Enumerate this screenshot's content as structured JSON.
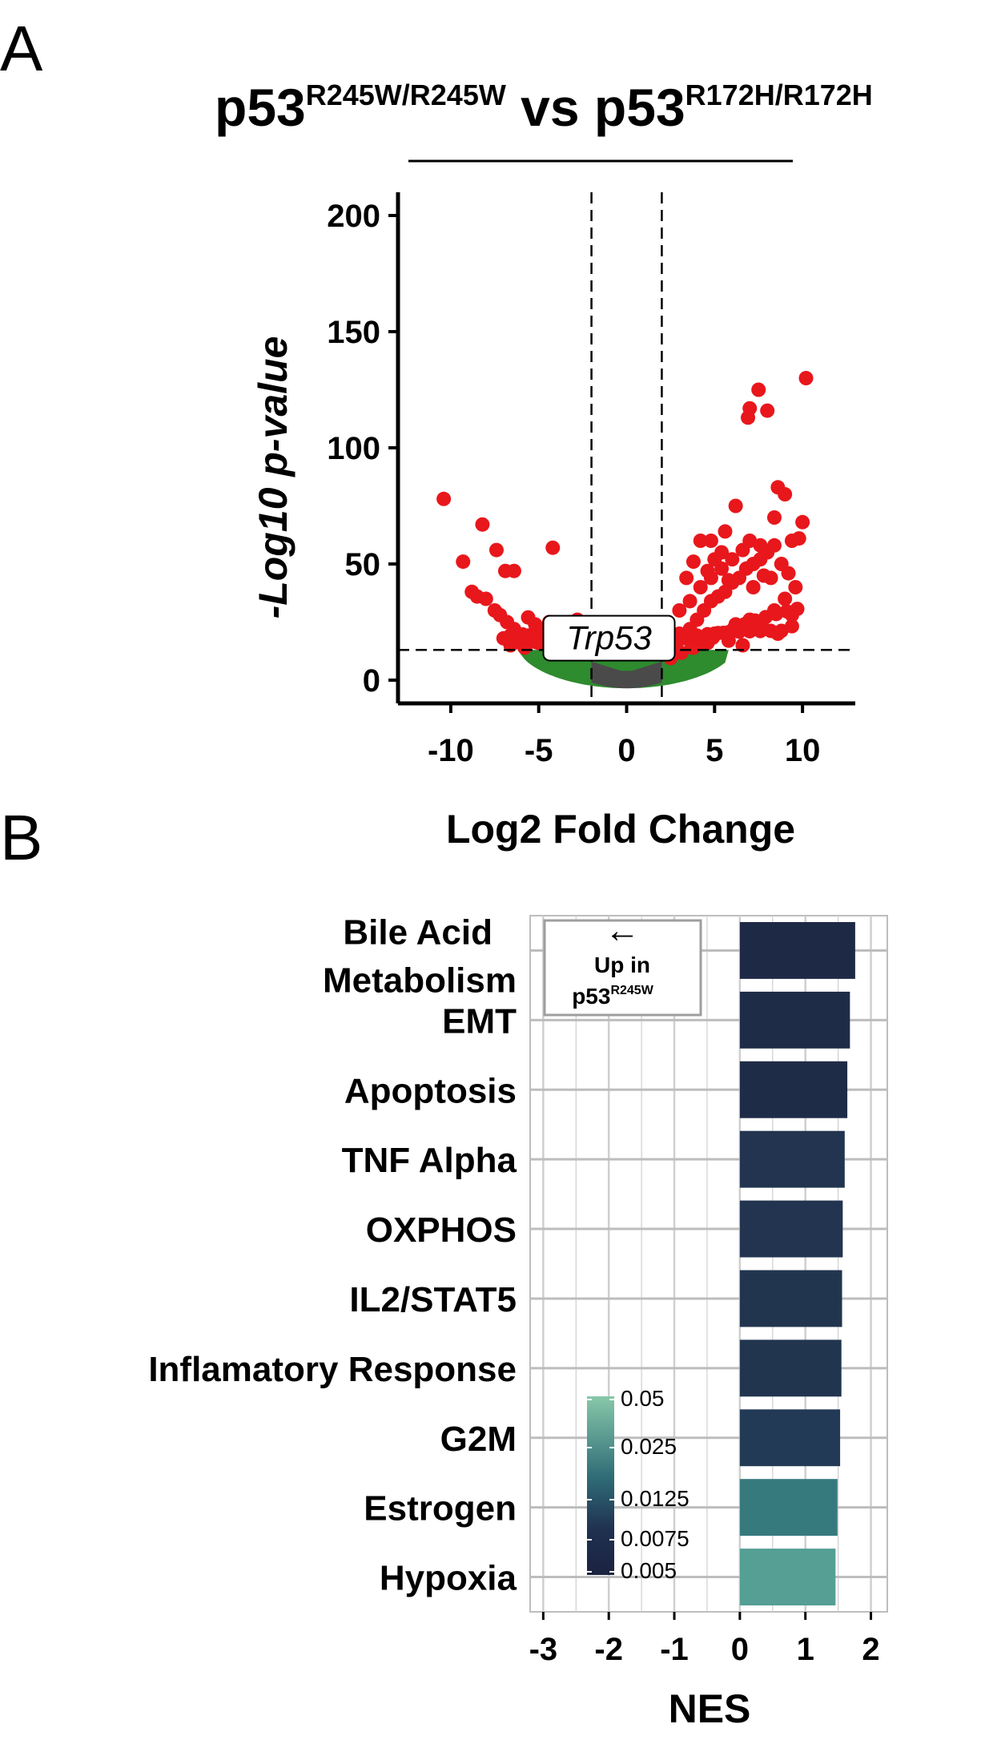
{
  "panels": {
    "a": "A",
    "b": "B"
  },
  "chart_data": [
    {
      "type": "scatter",
      "title_main": "p53",
      "title_sup1": "R245W/R245W",
      "title_vs": " vs ",
      "title_main2": "p53",
      "title_sup2": "R172H/R172H",
      "xlabel": "Log2 Fold Change",
      "ylabel": "-Log10 p-value",
      "xlim": [
        -13,
        13
      ],
      "ylim": [
        -10,
        210
      ],
      "xticks": [
        -10,
        -5,
        0,
        5,
        10
      ],
      "xtick_labels": [
        "-10",
        "-5",
        "0",
        "5",
        "10"
      ],
      "yticks": [
        0,
        50,
        100,
        150,
        200
      ],
      "ytick_labels": [
        "0",
        "50",
        "100",
        "150",
        "200"
      ],
      "thresholds": {
        "log2fc": [
          -2,
          2
        ],
        "neg_log10_p": 13
      },
      "annotation": {
        "label": "Trp53",
        "x": -1,
        "y": 16
      },
      "colors": {
        "significant": "#e8171c",
        "fc_only": "#2e8b2e",
        "not_significant": "#4a4a4a"
      },
      "significant_points": [
        [
          -10.4,
          78
        ],
        [
          -9.3,
          51
        ],
        [
          -8.2,
          67
        ],
        [
          -7.4,
          56
        ],
        [
          -6.9,
          47
        ],
        [
          -6.4,
          47
        ],
        [
          -4.2,
          57
        ],
        [
          -8.5,
          36
        ],
        [
          -8,
          35
        ],
        [
          -7.5,
          30
        ],
        [
          -7.2,
          28
        ],
        [
          -6.8,
          25
        ],
        [
          -6.4,
          22
        ],
        [
          -6.0,
          19
        ],
        [
          -5.6,
          27
        ],
        [
          -5.2,
          24
        ],
        [
          -4.8,
          22
        ],
        [
          -4.4,
          25
        ],
        [
          -4.0,
          24
        ],
        [
          -3.6,
          23
        ],
        [
          -3.2,
          25
        ],
        [
          -2.8,
          26
        ],
        [
          -2.4,
          24
        ],
        [
          -6.6,
          15
        ],
        [
          -5.8,
          14
        ],
        [
          -5.0,
          16
        ],
        [
          -4.2,
          15
        ],
        [
          -3.4,
          14
        ],
        [
          -7.0,
          18
        ],
        [
          -8.8,
          38
        ],
        [
          2.4,
          14
        ],
        [
          2.8,
          16
        ],
        [
          3.2,
          18
        ],
        [
          3.6,
          22
        ],
        [
          4.0,
          26
        ],
        [
          4.4,
          30
        ],
        [
          4.8,
          34
        ],
        [
          5.2,
          36
        ],
        [
          5.6,
          38
        ],
        [
          6.0,
          42
        ],
        [
          6.4,
          44
        ],
        [
          6.8,
          48
        ],
        [
          7.2,
          50
        ],
        [
          7.6,
          52
        ],
        [
          8.0,
          55
        ],
        [
          8.4,
          58
        ],
        [
          8.8,
          50
        ],
        [
          9.2,
          46
        ],
        [
          9.6,
          40
        ],
        [
          3.0,
          30
        ],
        [
          3.6,
          34
        ],
        [
          4.2,
          40
        ],
        [
          4.8,
          44
        ],
        [
          5.4,
          48
        ],
        [
          6.0,
          52
        ],
        [
          6.6,
          56
        ],
        [
          7.2,
          40
        ],
        [
          7.8,
          45
        ],
        [
          8.4,
          30
        ],
        [
          9.0,
          35
        ],
        [
          3.4,
          44
        ],
        [
          3.8,
          51
        ],
        [
          4.6,
          47
        ],
        [
          5.0,
          52
        ],
        [
          5.8,
          43
        ],
        [
          4.2,
          60
        ],
        [
          4.8,
          60
        ],
        [
          5.4,
          55
        ],
        [
          5.6,
          64
        ],
        [
          6.2,
          75
        ],
        [
          7.0,
          60
        ],
        [
          7.6,
          58
        ],
        [
          8.4,
          70
        ],
        [
          8.6,
          83
        ],
        [
          9.0,
          80
        ],
        [
          9.4,
          60
        ],
        [
          9.8,
          61
        ],
        [
          10.0,
          68
        ],
        [
          6.9,
          113
        ],
        [
          7.0,
          117
        ],
        [
          7.5,
          125
        ],
        [
          8.0,
          116
        ],
        [
          10.2,
          130
        ],
        [
          6.2,
          24
        ],
        [
          7.0,
          26
        ],
        [
          7.8,
          22
        ],
        [
          8.6,
          20
        ],
        [
          5.0,
          20
        ],
        [
          5.8,
          17
        ],
        [
          6.6,
          15
        ],
        [
          3.0,
          20
        ],
        [
          3.8,
          14
        ],
        [
          4.6,
          16
        ],
        [
          9.4,
          28
        ],
        [
          8.2,
          44
        ]
      ],
      "bands": {
        "fc_only": "green band below p threshold for |log2fc| > 2",
        "not_significant": "grey region for |log2fc| < 2"
      }
    },
    {
      "type": "bar",
      "orientation": "horizontal",
      "xlabel": "NES",
      "xlim": [
        -3.2,
        2.25
      ],
      "xticks": [
        -3,
        -2,
        -1,
        0,
        1,
        2
      ],
      "xtick_labels": [
        "-3",
        "-2",
        "-1",
        "0",
        "1",
        "2"
      ],
      "categories": [
        "Bile Acid Metabolism",
        "EMT",
        "Apoptosis",
        "TNF Alpha",
        "OXPHOS",
        "IL2/STAT5",
        "Inflamatory Response",
        "G2M",
        "Estrogen",
        "Hypoxia"
      ],
      "category_lines": [
        [
          "Bile Acid ",
          "Metabolism"
        ],
        [
          "EMT"
        ],
        [
          "Apoptosis"
        ],
        [
          "TNF Alpha"
        ],
        [
          "OXPHOS"
        ],
        [
          "IL2/STAT5"
        ],
        [
          "Inflamatory Response"
        ],
        [
          "G2M"
        ],
        [
          "Estrogen"
        ],
        [
          "Hypoxia"
        ]
      ],
      "values": [
        1.76,
        1.68,
        1.64,
        1.6,
        1.57,
        1.56,
        1.55,
        1.53,
        1.49,
        1.46
      ],
      "padj": [
        0.005,
        0.005,
        0.005,
        0.0075,
        0.0075,
        0.0075,
        0.0075,
        0.0075,
        0.025,
        0.05
      ],
      "bar_colors": [
        "#1e2a45",
        "#1f2c47",
        "#1f2c47",
        "#22344f",
        "#22344f",
        "#22354f",
        "#22354f",
        "#233a56",
        "#367a7e",
        "#559f94"
      ],
      "legend": {
        "type": "colorbar",
        "labels": [
          "0.05",
          "0.025",
          "0.0125",
          "0.0075",
          "0.005"
        ],
        "colors": [
          "#88c8aa",
          "#2f6d77",
          "#1d2b48"
        ]
      },
      "annotation": {
        "arrow": "←",
        "line1": "Up in",
        "line2": "p53",
        "line2_sup": "R245W"
      }
    }
  ]
}
